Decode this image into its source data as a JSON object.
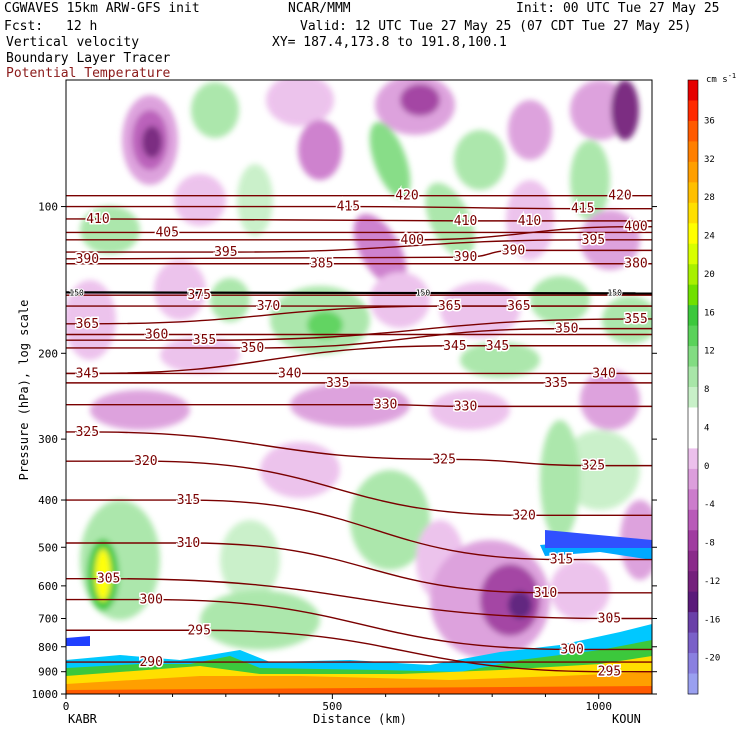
{
  "header": {
    "model": "CGWAVES 15km ARW-GFS init",
    "org": "NCAR/MMM",
    "init": "Init: 00 UTC Tue 27 May 25",
    "fcst_label": "Fcst:",
    "fcst_value": "12 h",
    "valid": "Valid: 12 UTC Tue 27 May 25 (07 CDT Tue 27 May 25)",
    "field1": "Vertical velocity",
    "field2": "Boundary Layer Tracer",
    "field3": "Potential Temperature",
    "xy": "XY= 187.4,173.8 to 191.8,100.1"
  },
  "colors": {
    "theta": "#7a0000",
    "field3_text": "#8b1a1a",
    "tropo": "#000000"
  },
  "chart_data": {
    "type": "heatmap",
    "title": "",
    "xlabel": "Distance (km)",
    "ylabel": "Pressure (hPa), log scale",
    "xlim": [
      0,
      1100
    ],
    "ylim": [
      1000,
      55
    ],
    "x_ticks": [
      0,
      500,
      1000
    ],
    "y_ticks": [
      100,
      200,
      300,
      400,
      500,
      600,
      700,
      800,
      900,
      1000
    ],
    "y_scale": "log",
    "endpoints": {
      "left": "KABR",
      "right": "KOUN"
    },
    "colorbar": {
      "unit": "cm s",
      "unit_exp": "-1",
      "labels": [
        36,
        32,
        28,
        24,
        20,
        16,
        12,
        8,
        4,
        0,
        -4,
        -8,
        -12,
        -16,
        -20
      ],
      "colors": [
        "#e60000",
        "#ff2a00",
        "#ff5a00",
        "#ff7f00",
        "#ff9f00",
        "#ffbf00",
        "#ffdf00",
        "#ffff00",
        "#d8ff00",
        "#a8f000",
        "#70e000",
        "#3cc83c",
        "#5ad25a",
        "#82dc82",
        "#a8e6a8",
        "#c8f0c8",
        "#ffffff",
        "#ffffff",
        "#ecc0ec",
        "#dc9edc",
        "#cc7ccc",
        "#b85ab8",
        "#a03ca0",
        "#8a2a8a",
        "#74207c",
        "#5a1a7a",
        "#6a40a8",
        "#7a60c8",
        "#8a80e0",
        "#9aa0f0"
      ]
    },
    "theta_contours": [
      {
        "value": 420,
        "labels": [
          [
            640,
            95
          ],
          [
            1040,
            95
          ]
        ]
      },
      {
        "value": 415,
        "labels": [
          [
            530,
            100
          ],
          [
            970,
            101
          ]
        ]
      },
      {
        "value": 410,
        "labels": [
          [
            60,
            106
          ],
          [
            750,
            107
          ],
          [
            870,
            107
          ]
        ]
      },
      {
        "value": 405,
        "labels": [
          [
            190,
            113
          ]
        ]
      },
      {
        "value": 400,
        "labels": [
          [
            650,
            117
          ],
          [
            1070,
            110
          ]
        ]
      },
      {
        "value": 395,
        "labels": [
          [
            300,
            124
          ],
          [
            990,
            117
          ]
        ]
      },
      {
        "value": 390,
        "labels": [
          [
            40,
            128
          ],
          [
            750,
            127
          ],
          [
            840,
            123
          ]
        ]
      },
      {
        "value": 385,
        "labels": [
          [
            480,
            131
          ]
        ]
      },
      {
        "value": 380,
        "labels": [
          [
            1070,
            131
          ]
        ]
      },
      {
        "value": 375,
        "labels": [
          [
            250,
            152
          ]
        ]
      },
      {
        "value": 370,
        "labels": [
          [
            380,
            160
          ]
        ]
      },
      {
        "value": 365,
        "labels": [
          [
            40,
            174
          ],
          [
            720,
            160
          ],
          [
            850,
            160
          ]
        ]
      },
      {
        "value": 360,
        "labels": [
          [
            170,
            183
          ]
        ]
      },
      {
        "value": 355,
        "labels": [
          [
            260,
            188
          ],
          [
            1070,
            170
          ]
        ]
      },
      {
        "value": 350,
        "labels": [
          [
            350,
            195
          ],
          [
            940,
            178
          ]
        ]
      },
      {
        "value": 345,
        "labels": [
          [
            40,
            220
          ],
          [
            730,
            193
          ],
          [
            810,
            193
          ]
        ]
      },
      {
        "value": 340,
        "labels": [
          [
            420,
            220
          ],
          [
            1010,
            220
          ]
        ]
      },
      {
        "value": 335,
        "labels": [
          [
            510,
            230
          ],
          [
            920,
            230
          ]
        ]
      },
      {
        "value": 330,
        "labels": [
          [
            600,
            255
          ],
          [
            750,
            257
          ]
        ]
      },
      {
        "value": 325,
        "labels": [
          [
            40,
            290
          ],
          [
            710,
            330
          ],
          [
            990,
            340
          ]
        ]
      },
      {
        "value": 320,
        "labels": [
          [
            150,
            333
          ],
          [
            860,
            430
          ]
        ]
      },
      {
        "value": 315,
        "labels": [
          [
            230,
            400
          ],
          [
            930,
            530
          ]
        ]
      },
      {
        "value": 310,
        "labels": [
          [
            230,
            490
          ],
          [
            900,
            620
          ]
        ]
      },
      {
        "value": 305,
        "labels": [
          [
            80,
            580
          ],
          [
            1020,
            700
          ]
        ]
      },
      {
        "value": 300,
        "labels": [
          [
            160,
            640
          ],
          [
            950,
            810
          ]
        ]
      },
      {
        "value": 295,
        "labels": [
          [
            250,
            740
          ],
          [
            1020,
            900
          ]
        ]
      },
      {
        "value": 290,
        "labels": [
          [
            160,
            860
          ]
        ]
      }
    ],
    "tropopause": {
      "label": "150",
      "pressure": 150
    },
    "tropopause_labels": [
      [
        20,
        150
      ],
      [
        670,
        150
      ],
      [
        1030,
        150
      ]
    ]
  }
}
